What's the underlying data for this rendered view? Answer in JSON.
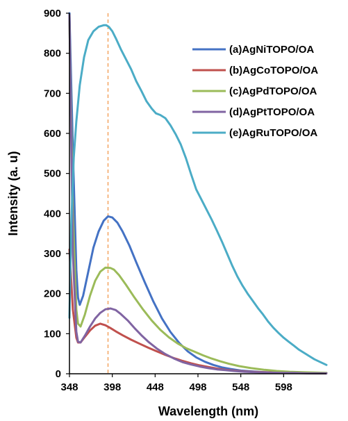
{
  "chart_data": {
    "type": "line",
    "title": "",
    "xlabel": "Wavelength (nm)",
    "ylabel": "Intensity (a. u)",
    "xlim": [
      348,
      648
    ],
    "ylim": [
      0,
      900
    ],
    "xticks": [
      348,
      398,
      448,
      498,
      548,
      598
    ],
    "yticks": [
      0,
      100,
      200,
      300,
      400,
      500,
      600,
      700,
      800,
      900
    ],
    "grid": false,
    "legend_position": "top-right",
    "reference_line": {
      "x": 393,
      "style": "dashed",
      "color": "#F4A460"
    },
    "series": [
      {
        "name": "(a)AgNiTOPO/OA",
        "color": "#4472C4",
        "x": [
          348,
          352,
          356,
          358,
          360,
          364,
          370,
          376,
          382,
          388,
          393,
          398,
          404,
          410,
          418,
          426,
          436,
          446,
          456,
          466,
          476,
          486,
          496,
          506,
          516,
          526,
          536,
          548,
          560,
          575,
          590,
          605,
          620,
          635,
          648
        ],
        "y": [
          900,
          560,
          260,
          190,
          172,
          195,
          255,
          315,
          355,
          382,
          393,
          390,
          377,
          355,
          320,
          278,
          228,
          180,
          138,
          104,
          77,
          56,
          41,
          30,
          22,
          16,
          12,
          8,
          6,
          4,
          3,
          2,
          2,
          1,
          1
        ]
      },
      {
        "name": "(b)AgCoTOPO/OA",
        "color": "#C0504D",
        "x": [
          348,
          352,
          356,
          358,
          361,
          366,
          372,
          378,
          384,
          390,
          396,
          402,
          410,
          420,
          430,
          440,
          450,
          460,
          470,
          480,
          490,
          500,
          510,
          520,
          530,
          540,
          550,
          560,
          575,
          590,
          605,
          620,
          635,
          648
        ],
        "y": [
          310,
          160,
          90,
          78,
          78,
          92,
          108,
          120,
          125,
          121,
          114,
          106,
          96,
          85,
          75,
          65,
          56,
          47,
          39,
          32,
          26,
          21,
          17,
          13,
          10,
          8,
          6,
          5,
          4,
          3,
          2,
          2,
          1,
          1
        ]
      },
      {
        "name": "(c)AgPdTOPO/OA",
        "color": "#9BBB59",
        "x": [
          348,
          352,
          356,
          358,
          361,
          366,
          372,
          378,
          384,
          390,
          396,
          400,
          406,
          414,
          424,
          434,
          444,
          454,
          464,
          474,
          484,
          494,
          504,
          514,
          524,
          534,
          546,
          560,
          575,
          590,
          605,
          620,
          635,
          648
        ],
        "y": [
          880,
          400,
          160,
          125,
          118,
          148,
          195,
          232,
          255,
          265,
          264,
          260,
          246,
          222,
          190,
          160,
          133,
          110,
          91,
          76,
          64,
          55,
          46,
          38,
          31,
          25,
          19,
          14,
          10,
          7,
          5,
          4,
          3,
          2
        ]
      },
      {
        "name": "(d)AgPtTOPO/OA",
        "color": "#8064A2",
        "x": [
          348,
          352,
          356,
          358,
          361,
          366,
          372,
          378,
          384,
          390,
          396,
          402,
          408,
          416,
          424,
          432,
          440,
          450,
          460,
          470,
          480,
          490,
          500,
          510,
          520,
          530,
          540,
          552,
          566,
          580,
          595,
          610,
          625,
          648
        ],
        "y": [
          895,
          300,
          105,
          80,
          78,
          95,
          118,
          138,
          152,
          161,
          163,
          159,
          149,
          133,
          114,
          96,
          80,
          63,
          49,
          38,
          29,
          23,
          18,
          14,
          11,
          9,
          7,
          5,
          4,
          3,
          2,
          2,
          1,
          1
        ]
      },
      {
        "name": "(e)AgRuTOPO/OA",
        "color": "#4BACC6",
        "x": [
          348,
          350,
          353,
          356,
          360,
          365,
          370,
          376,
          382,
          388,
          391,
          394,
          398,
          402,
          408,
          414,
          420,
          426,
          432,
          438,
          444,
          449,
          454,
          460,
          466,
          472,
          478,
          484,
          490,
          496,
          502,
          508,
          514,
          520,
          526,
          532,
          538,
          544,
          550,
          556,
          562,
          568,
          574,
          580,
          586,
          592,
          598,
          604,
          610,
          616,
          622,
          628,
          634,
          640,
          648
        ],
        "y": [
          140,
          370,
          540,
          630,
          720,
          790,
          833,
          855,
          866,
          870,
          870,
          866,
          855,
          838,
          810,
          785,
          760,
          730,
          706,
          680,
          662,
          650,
          646,
          638,
          620,
          598,
          572,
          538,
          498,
          460,
          435,
          410,
          385,
          358,
          330,
          300,
          270,
          243,
          220,
          200,
          182,
          164,
          148,
          130,
          115,
          102,
          90,
          80,
          70,
          60,
          52,
          44,
          36,
          30,
          22
        ]
      }
    ]
  }
}
